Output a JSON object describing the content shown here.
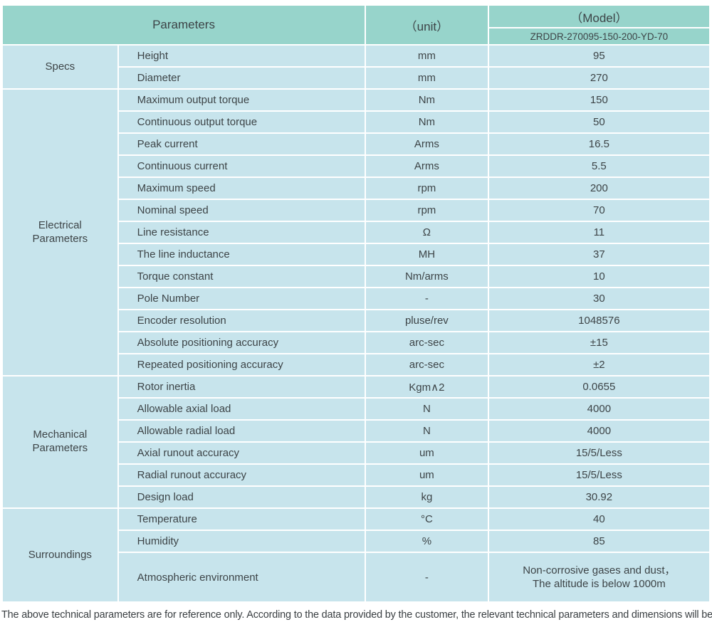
{
  "colors": {
    "header_bg": "#97d4cb",
    "cell_bg": "#c7e4ec",
    "text": "#3d4447"
  },
  "table": {
    "header": {
      "parameters_label": "Parameters",
      "unit_label": "（unit）",
      "model_label": "（Model）",
      "model_value": "ZRDDR-270095-150-200-YD-70"
    },
    "groups": [
      {
        "name": "Specs",
        "rows": [
          {
            "param": "Height",
            "unit": "mm",
            "value": "95"
          },
          {
            "param": "Diameter",
            "unit": "mm",
            "value": "270"
          }
        ]
      },
      {
        "name": "Electrical Parameters",
        "rows": [
          {
            "param": "Maximum output torque",
            "unit": "Nm",
            "value": "150"
          },
          {
            "param": "Continuous output torque",
            "unit": "Nm",
            "value": "50"
          },
          {
            "param": "Peak current",
            "unit": "Arms",
            "value": "16.5"
          },
          {
            "param": "Continuous current",
            "unit": "Arms",
            "value": "5.5"
          },
          {
            "param": "Maximum speed",
            "unit": "rpm",
            "value": "200"
          },
          {
            "param": "Nominal speed",
            "unit": "rpm",
            "value": "70"
          },
          {
            "param": "Line resistance",
            "unit": "Ω",
            "value": "11"
          },
          {
            "param": "The line inductance",
            "unit": "MH",
            "value": "37"
          },
          {
            "param": "Torque constant",
            "unit": "Nm/arms",
            "value": "10"
          },
          {
            "param": "Pole Number",
            "unit": "-",
            "value": "30"
          },
          {
            "param": "Encoder resolution",
            "unit": "pluse/rev",
            "value": "1048576"
          },
          {
            "param": "Absolute positioning accuracy",
            "unit": "arc-sec",
            "value": "±15"
          },
          {
            "param": "Repeated positioning accuracy",
            "unit": "arc-sec",
            "value": "±2"
          }
        ]
      },
      {
        "name": "Mechanical Parameters",
        "rows": [
          {
            "param": "Rotor inertia",
            "unit": "Kgm∧2",
            "value": "0.0655"
          },
          {
            "param": "Allowable axial load",
            "unit": "N",
            "value": "4000"
          },
          {
            "param": "Allowable radial load",
            "unit": "N",
            "value": "4000"
          },
          {
            "param": "Axial runout accuracy",
            "unit": "um",
            "value": "15/5/Less"
          },
          {
            "param": "Radial runout accuracy",
            "unit": "um",
            "value": "15/5/Less"
          },
          {
            "param": "Design load",
            "unit": "kg",
            "value": "30.92"
          }
        ]
      },
      {
        "name": "Surroundings",
        "rows": [
          {
            "param": "Temperature",
            "unit": "°C",
            "value": "40"
          },
          {
            "param": "Humidity",
            "unit": "%",
            "value": "85"
          },
          {
            "param": "Atmospheric environment",
            "unit": "-",
            "value": "Non-corrosive gases and dust，\nThe altitude is below 1000m",
            "tall": true
          }
        ]
      }
    ],
    "footer_note": "The above technical parameters are for reference only. According to the data provided by the customer, the relevant technical parameters and dimensions will be issued."
  }
}
